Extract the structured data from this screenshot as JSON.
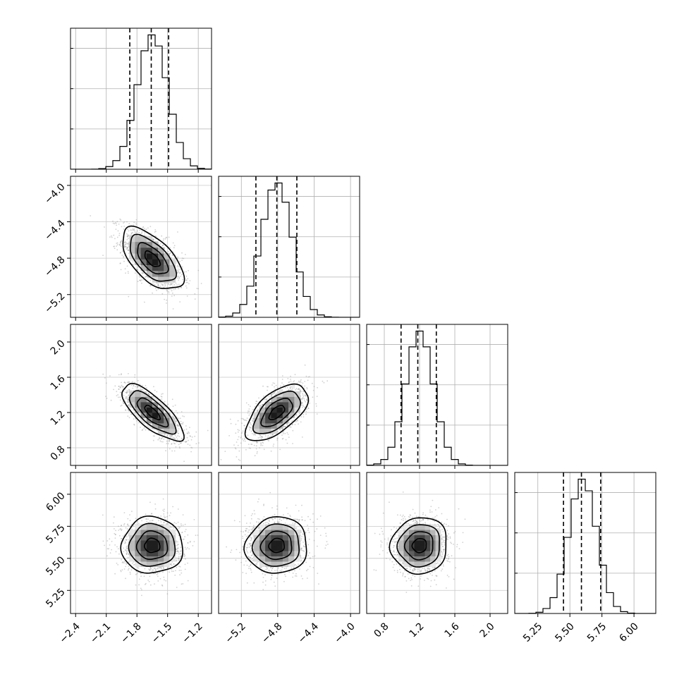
{
  "chart_data": {
    "type": "corner",
    "grid": true,
    "params": [
      {
        "range": [
          -2.45,
          -1.07
        ],
        "ticks": [
          -2.4,
          -2.1,
          -1.8,
          -1.5,
          -1.2
        ],
        "tick_labels": [
          "−2.4",
          "−2.1",
          "−1.8",
          "−1.5",
          "−1.2"
        ],
        "mean": -1.65,
        "sd": 0.15,
        "quantiles": [
          -1.87,
          -1.66,
          -1.49
        ]
      },
      {
        "range": [
          -5.45,
          -3.9
        ],
        "ticks": [
          -5.2,
          -4.8,
          -4.4,
          -4.0
        ],
        "tick_labels": [
          "−5.2",
          "−4.8",
          "−4.4",
          "−4.0"
        ],
        "mean": -4.81,
        "sd": 0.17,
        "quantiles": [
          -5.04,
          -4.81,
          -4.59
        ]
      },
      {
        "range": [
          0.6,
          2.2
        ],
        "ticks": [
          0.8,
          1.2,
          1.6,
          2.0
        ],
        "tick_labels": [
          "0.8",
          "1.2",
          "1.6",
          "2.0"
        ],
        "mean": 1.2,
        "sd": 0.16,
        "quantiles": [
          0.99,
          1.18,
          1.39
        ]
      },
      {
        "range": [
          5.07,
          6.17
        ],
        "ticks": [
          5.25,
          5.5,
          5.75,
          6.0
        ],
        "tick_labels": [
          "5.25",
          "5.50",
          "5.75",
          "6.00"
        ],
        "mean": 5.6,
        "sd": 0.11,
        "quantiles": [
          5.45,
          5.59,
          5.74
        ]
      }
    ],
    "correlations": [
      [
        1,
        -0.6,
        -0.75,
        0.0
      ],
      [
        -0.6,
        1,
        0.6,
        0.05
      ],
      [
        -0.75,
        0.6,
        1,
        0.05
      ],
      [
        0.0,
        0.05,
        0.05,
        1
      ]
    ],
    "histogram_bins": 20,
    "contour_levels_sigma": [
      0.5,
      1.0,
      1.5,
      2.0
    ]
  }
}
